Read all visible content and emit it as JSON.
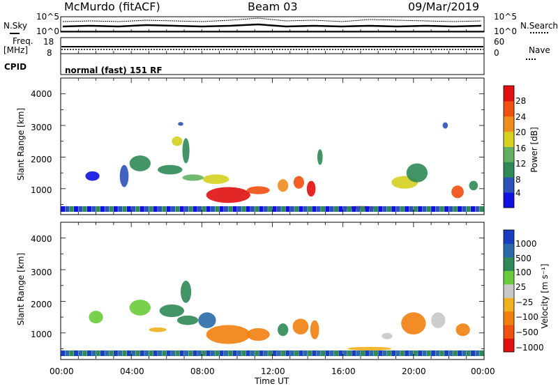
{
  "header": {
    "station": "McMurdo (fitACF)",
    "beam": "Beam 03",
    "date": "09/Mar/2019"
  },
  "noise_panel": {
    "left_label": "N.Sky",
    "right_label": "N.Search",
    "tick_top": "10^5",
    "tick_bottom": "10^0"
  },
  "freq_panel": {
    "left_label_line1": "Freq.",
    "left_label_line2": "[MHz]",
    "left_ticks": [
      "18",
      "8"
    ],
    "right_label": "Nave",
    "right_ticks": [
      "60",
      "0"
    ]
  },
  "cpid": {
    "label": "CPID",
    "mode": "normal (fast) 151 RF"
  },
  "chart_data": [
    {
      "type": "heatmap",
      "name": "power",
      "ylabel": "Slant Range [km]",
      "ylim": [
        180,
        4500
      ],
      "yticks": [
        "1000",
        "2000",
        "3000",
        "4000"
      ],
      "xticks": [
        "00:00",
        "04:00",
        "08:00",
        "12:00",
        "16:00",
        "20:00",
        "00:00"
      ],
      "colorbar_label": "Power [dB]",
      "colorbar_ticks": [
        "4",
        "8",
        "12",
        "16",
        "20",
        "24",
        "28"
      ],
      "colors": [
        "#1010e0",
        "#2a52b8",
        "#2f8a58",
        "#62b060",
        "#d6d020",
        "#f08c20",
        "#f05010",
        "#e01010"
      ]
    },
    {
      "type": "heatmap",
      "name": "velocity",
      "ylabel": "Slant Range [km]",
      "ylim": [
        180,
        4500
      ],
      "yticks": [
        "1000",
        "2000",
        "3000",
        "4000"
      ],
      "xticks": [
        "00:00",
        "04:00",
        "08:00",
        "12:00",
        "16:00",
        "20:00",
        "00:00"
      ],
      "xlabel": "Time UT",
      "colorbar_label": "Velocity [m s⁻¹]",
      "colorbar_ticks": [
        "1000",
        "500",
        "100",
        "25",
        "−25",
        "−100",
        "−500",
        "−1000"
      ],
      "colors": [
        "#1a3ec0",
        "#2a6aa8",
        "#2f8a58",
        "#6acb3a",
        "#c8c8c8",
        "#f0b020",
        "#f08010",
        "#f05010",
        "#e01010"
      ]
    }
  ]
}
